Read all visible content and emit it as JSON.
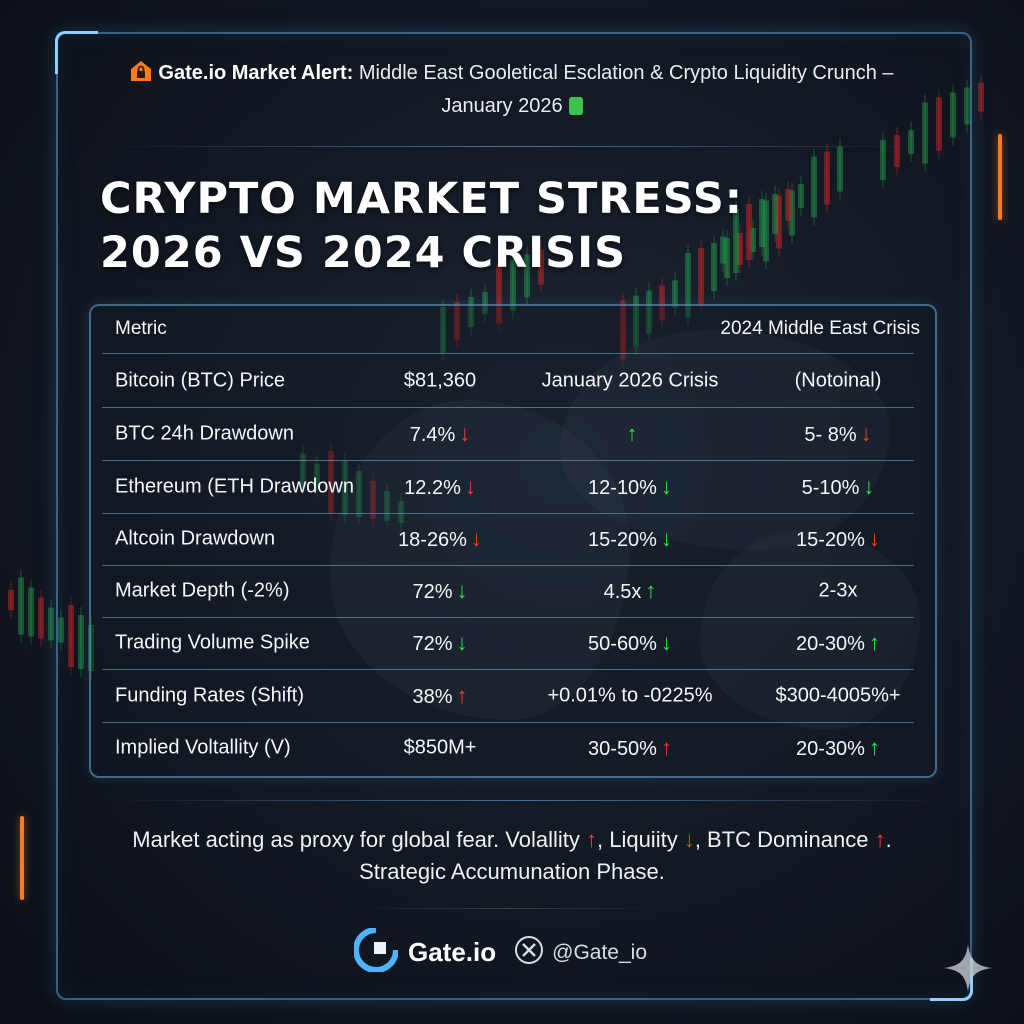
{
  "alert": {
    "brand": "Gate.io Market Alert:",
    "text_line1": "Middle East Gooletical Esclation & Crypto Liquidity Crunch –",
    "text_line2": "January 2026"
  },
  "headline": {
    "line1": "CRYPTO MARKET STRESS:",
    "line2": "2026 VS 2024 CRISIS"
  },
  "table": {
    "header": {
      "metric": "Metric",
      "col4": "2024 Middle East Crisis"
    },
    "rows": [
      {
        "metric": "Bitcoin (BTC) Price",
        "c2": "$81,360",
        "c2_arrow": "",
        "c3": "January 2026 Crisis",
        "c3_arrow": "",
        "c4": "(Notoinal)",
        "c4_arrow": ""
      },
      {
        "metric": "BTC 24h Drawdown",
        "c2": "7.4%",
        "c2_arrow": "down-red",
        "c3": "",
        "c3_arrow": "up-green",
        "c4": "5-  8%",
        "c4_arrow": "down-red"
      },
      {
        "metric": "Ethereum (ETH Drawdown",
        "c2": "12.2%",
        "c2_arrow": "down-red",
        "c3": "12-10%",
        "c3_arrow": "down-green",
        "c4": "5-10%",
        "c4_arrow": "down-green"
      },
      {
        "metric": "Altcoin Drawdown",
        "c2": "18-26%",
        "c2_arrow": "down-red",
        "c3": "15-20%",
        "c3_arrow": "down-green",
        "c4": "15-20%",
        "c4_arrow": "down-red"
      },
      {
        "metric": "Market Depth (-2%)",
        "c2": "72%",
        "c2_arrow": "down-green",
        "c3": "4.5x",
        "c3_arrow": "up-green",
        "c4": "2-3x",
        "c4_arrow": ""
      },
      {
        "metric": "Trading Volume Spike",
        "c2": "72%",
        "c2_arrow": "down-green",
        "c3": "50-60%",
        "c3_arrow": "down-green",
        "c4": "20-30%",
        "c4_arrow": "up-green"
      },
      {
        "metric": "Funding Rates (Shift)",
        "c2": "38%",
        "c2_arrow": "up-red",
        "c3": "+0.01% to -0225%",
        "c3_arrow": "",
        "c4": "$300-4005%+",
        "c4_arrow": ""
      },
      {
        "metric": "Implied Voltallity (V)",
        "c2": "$850M+",
        "c2_arrow": "",
        "c3": "30-50%",
        "c3_arrow": "up-red",
        "c4": "20-30%",
        "c4_arrow": "up-green"
      }
    ]
  },
  "footer": {
    "p1": "Market acting as proxy for global fear. Volallity",
    "p2": ", Liquiity",
    "p3": ", BTC Dominance",
    "p4": ".",
    "line2": "Strategic Accumunation Phase."
  },
  "brand": {
    "name": "Gate.io",
    "handle": "@Gate_io"
  },
  "colors": {
    "accent": "#ff7a1a",
    "frame": "#5fa0d7",
    "up": "#2ee24a",
    "down": "#ff3b30"
  },
  "icons": [
    "lock-house-icon",
    "tag-icon",
    "arrow-up-icon",
    "arrow-down-icon",
    "gate-logo-icon",
    "x-logo-icon",
    "sparkle-icon"
  ]
}
